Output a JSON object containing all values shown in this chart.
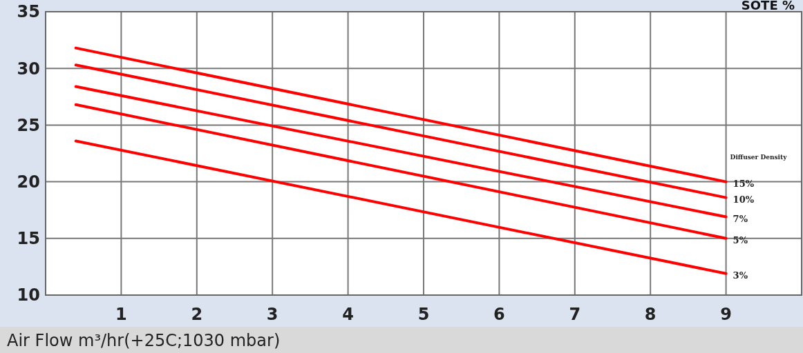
{
  "chart_data": {
    "type": "line",
    "ylabel": "SOTE %",
    "xlabel": "Air Flow m³/hr(+25C;1030 mbar)",
    "legend_title": "Diffuser Density",
    "x": [
      0.4,
      9
    ],
    "xlim": [
      0,
      10
    ],
    "xticks": [
      1,
      2,
      3,
      4,
      5,
      6,
      7,
      8,
      9
    ],
    "ylim": [
      10,
      35
    ],
    "yticks": [
      10,
      15,
      20,
      25,
      30,
      35
    ],
    "grid": true,
    "legend": "right",
    "marker": "none",
    "line_style": "solid",
    "series": [
      {
        "name": "15%",
        "color": "#ff0000",
        "values": [
          31.8,
          20
        ]
      },
      {
        "name": "10%",
        "color": "#ff0000",
        "values": [
          30.3,
          18.6
        ]
      },
      {
        "name": "7%",
        "color": "#ff0000",
        "values": [
          28.4,
          16.9
        ]
      },
      {
        "name": "5%",
        "color": "#ff0000",
        "values": [
          26.8,
          15
        ]
      },
      {
        "name": "3%",
        "color": "#ff0000",
        "values": [
          23.6,
          11.9
        ]
      }
    ]
  }
}
